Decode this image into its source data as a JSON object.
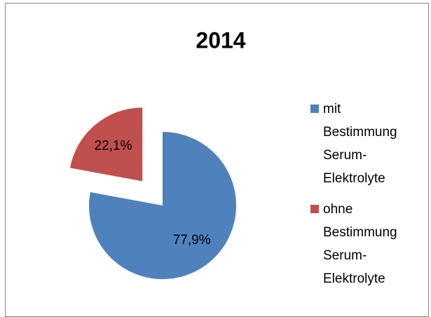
{
  "chart_data": {
    "type": "pie",
    "title": "2014",
    "categories": [
      "mit Bestimmung Serum-Elektrolyte",
      "ohne Bestimmung Serum-Elektrolyte"
    ],
    "values": [
      77.9,
      22.1
    ],
    "value_labels": [
      "77,9%",
      "22,1%"
    ],
    "colors": [
      "#4f81bd",
      "#c0504d"
    ],
    "legend": "right"
  }
}
